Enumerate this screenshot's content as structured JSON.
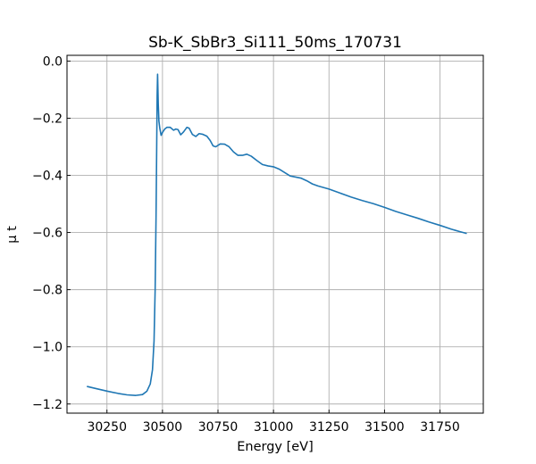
{
  "chart_data": {
    "type": "line",
    "title": "Sb-K_SbBr3_Si111_50ms_170731",
    "xlabel": "Energy [eV]",
    "ylabel": "μ t",
    "xlim": [
      30070,
      31945
    ],
    "ylim": [
      -1.232,
      0.02
    ],
    "x_ticks": [
      30250,
      30500,
      30750,
      31000,
      31250,
      31500,
      31750
    ],
    "y_ticks": [
      0.0,
      -0.2,
      -0.4,
      -0.6,
      -0.8,
      -1.0,
      -1.2
    ],
    "x_tick_labels": [
      "30250",
      "30500",
      "30750",
      "31000",
      "31250",
      "31500",
      "31750"
    ],
    "y_tick_labels": [
      "0.0",
      "−0.2",
      "−0.4",
      "−0.6",
      "−0.8",
      "−1.0",
      "−1.2"
    ],
    "grid": true,
    "series": [
      {
        "color": "#1f77b4",
        "points": [
          [
            30162,
            -1.139
          ],
          [
            30200,
            -1.146
          ],
          [
            30250,
            -1.155
          ],
          [
            30300,
            -1.163
          ],
          [
            30340,
            -1.168
          ],
          [
            30380,
            -1.17
          ],
          [
            30410,
            -1.167
          ],
          [
            30430,
            -1.155
          ],
          [
            30445,
            -1.13
          ],
          [
            30455,
            -1.08
          ],
          [
            30462,
            -0.98
          ],
          [
            30467,
            -0.8
          ],
          [
            30471,
            -0.55
          ],
          [
            30474,
            -0.3
          ],
          [
            30476,
            -0.12
          ],
          [
            30478,
            -0.046
          ],
          [
            30481,
            -0.15
          ],
          [
            30484,
            -0.21
          ],
          [
            30488,
            -0.235
          ],
          [
            30494,
            -0.26
          ],
          [
            30500,
            -0.25
          ],
          [
            30510,
            -0.238
          ],
          [
            30520,
            -0.232
          ],
          [
            30535,
            -0.232
          ],
          [
            30550,
            -0.242
          ],
          [
            30560,
            -0.238
          ],
          [
            30570,
            -0.24
          ],
          [
            30582,
            -0.258
          ],
          [
            30595,
            -0.248
          ],
          [
            30610,
            -0.232
          ],
          [
            30620,
            -0.235
          ],
          [
            30635,
            -0.257
          ],
          [
            30650,
            -0.264
          ],
          [
            30665,
            -0.254
          ],
          [
            30680,
            -0.256
          ],
          [
            30700,
            -0.263
          ],
          [
            30715,
            -0.278
          ],
          [
            30728,
            -0.297
          ],
          [
            30740,
            -0.3
          ],
          [
            30760,
            -0.29
          ],
          [
            30780,
            -0.291
          ],
          [
            30800,
            -0.3
          ],
          [
            30820,
            -0.318
          ],
          [
            30840,
            -0.33
          ],
          [
            30860,
            -0.33
          ],
          [
            30880,
            -0.326
          ],
          [
            30900,
            -0.333
          ],
          [
            30925,
            -0.348
          ],
          [
            30950,
            -0.362
          ],
          [
            30975,
            -0.367
          ],
          [
            31000,
            -0.37
          ],
          [
            31025,
            -0.378
          ],
          [
            31050,
            -0.39
          ],
          [
            31075,
            -0.402
          ],
          [
            31100,
            -0.406
          ],
          [
            31125,
            -0.41
          ],
          [
            31150,
            -0.419
          ],
          [
            31175,
            -0.43
          ],
          [
            31200,
            -0.437
          ],
          [
            31250,
            -0.448
          ],
          [
            31300,
            -0.462
          ],
          [
            31350,
            -0.476
          ],
          [
            31400,
            -0.488
          ],
          [
            31450,
            -0.499
          ],
          [
            31500,
            -0.512
          ],
          [
            31550,
            -0.526
          ],
          [
            31600,
            -0.538
          ],
          [
            31650,
            -0.55
          ],
          [
            31700,
            -0.563
          ],
          [
            31750,
            -0.575
          ],
          [
            31800,
            -0.588
          ],
          [
            31840,
            -0.597
          ],
          [
            31868,
            -0.603
          ]
        ]
      }
    ]
  }
}
